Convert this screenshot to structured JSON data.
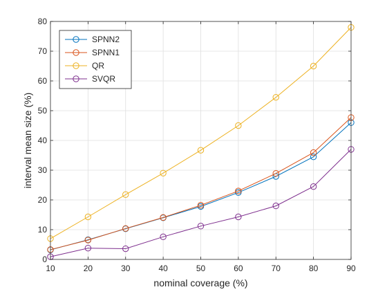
{
  "chart_data": {
    "type": "line",
    "title": "",
    "xlabel": "nominal coverage (%)",
    "ylabel": "interval mean size (%)",
    "x": [
      10,
      20,
      30,
      40,
      50,
      60,
      70,
      80,
      90
    ],
    "xlim": [
      10,
      90
    ],
    "ylim": [
      0,
      80
    ],
    "xticks": [
      10,
      20,
      30,
      40,
      50,
      60,
      70,
      80,
      90
    ],
    "yticks": [
      0,
      10,
      20,
      30,
      40,
      50,
      60,
      70,
      80
    ],
    "grid": true,
    "legend_position": "top-left",
    "marker": "circle",
    "series": [
      {
        "name": "SPNN2",
        "color": "#0072BD",
        "values": [
          3.2,
          6.6,
          10.3,
          14.0,
          17.8,
          22.5,
          27.9,
          34.5,
          46.0
        ]
      },
      {
        "name": "SPNN1",
        "color": "#D95319",
        "values": [
          3.3,
          6.5,
          10.4,
          14.1,
          18.2,
          23.0,
          28.9,
          35.9,
          47.7
        ]
      },
      {
        "name": "QR",
        "color": "#EDB120",
        "values": [
          7.0,
          14.3,
          21.8,
          29.0,
          36.7,
          45.0,
          54.5,
          65.0,
          78.0
        ]
      },
      {
        "name": "SVQR",
        "color": "#7E2F8E",
        "values": [
          0.9,
          3.8,
          3.6,
          7.6,
          11.2,
          14.3,
          18.0,
          24.5,
          37.0
        ]
      }
    ]
  }
}
